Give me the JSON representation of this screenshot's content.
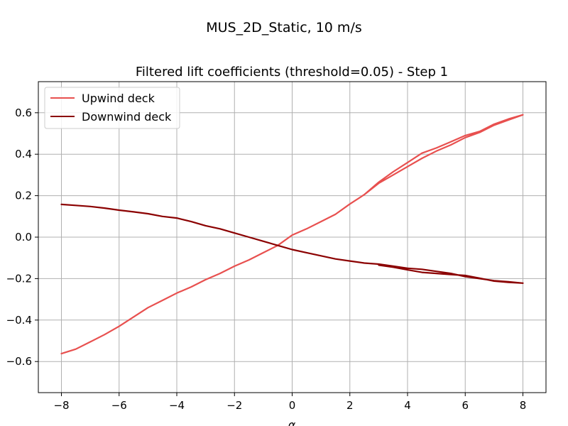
{
  "chart_data": {
    "type": "line",
    "suptitle": "MUS_2D_Static, 10 m/s",
    "title": "Filtered lift coefficients (threshold=0.05) - Step 1",
    "xlabel": "α",
    "ylabel": "",
    "xlim": [
      -8.8,
      8.8
    ],
    "ylim": [
      -0.75,
      0.75
    ],
    "xticks": [
      -8,
      -6,
      -4,
      -2,
      0,
      2,
      4,
      6,
      8
    ],
    "yticks": [
      -0.6,
      -0.4,
      -0.2,
      0.0,
      0.2,
      0.4,
      0.6
    ],
    "xtick_labels": [
      "−8",
      "−6",
      "−4",
      "−2",
      "0",
      "2",
      "4",
      "6",
      "8"
    ],
    "ytick_labels": [
      "−0.6",
      "−0.4",
      "−0.2",
      "0.0",
      "0.2",
      "0.4",
      "0.6"
    ],
    "grid": true,
    "legend_position": "upper-left",
    "series": [
      {
        "name": "Upwind deck",
        "color": "#e8504f",
        "points": [
          [
            -8,
            -0.562
          ],
          [
            -7.5,
            -0.54
          ],
          [
            -7,
            -0.505
          ],
          [
            -6.5,
            -0.47
          ],
          [
            -6,
            -0.43
          ],
          [
            -5.5,
            -0.385
          ],
          [
            -5,
            -0.34
          ],
          [
            -4.5,
            -0.305
          ],
          [
            -4,
            -0.27
          ],
          [
            -3.5,
            -0.24
          ],
          [
            -3,
            -0.205
          ],
          [
            -2.5,
            -0.175
          ],
          [
            -2,
            -0.14
          ],
          [
            -1.5,
            -0.11
          ],
          [
            -1,
            -0.075
          ],
          [
            -0.5,
            -0.04
          ],
          [
            0,
            0.01
          ],
          [
            0.5,
            0.04
          ],
          [
            1,
            0.075
          ],
          [
            1.5,
            0.11
          ],
          [
            2,
            0.16
          ],
          [
            2.5,
            0.205
          ],
          [
            3,
            0.265
          ],
          [
            3.5,
            0.315
          ],
          [
            4,
            0.36
          ],
          [
            4.5,
            0.405
          ],
          [
            5,
            0.43
          ],
          [
            5.5,
            0.46
          ],
          [
            6,
            0.49
          ],
          [
            6.5,
            0.51
          ],
          [
            7,
            0.545
          ],
          [
            7.5,
            0.57
          ],
          [
            8,
            0.59
          ],
          [
            7.5,
            0.565
          ],
          [
            7,
            0.54
          ],
          [
            6.5,
            0.505
          ],
          [
            6,
            0.48
          ],
          [
            5.5,
            0.445
          ],
          [
            5,
            0.415
          ],
          [
            4.5,
            0.38
          ],
          [
            4,
            0.34
          ],
          [
            3.5,
            0.3
          ],
          [
            3,
            0.26
          ],
          [
            2.5,
            0.205
          ],
          [
            2,
            0.16
          ]
        ]
      },
      {
        "name": "Downwind deck",
        "color": "#8b0000",
        "points": [
          [
            -8,
            0.158
          ],
          [
            -7.5,
            0.153
          ],
          [
            -7,
            0.148
          ],
          [
            -6.5,
            0.14
          ],
          [
            -6,
            0.13
          ],
          [
            -5.5,
            0.122
          ],
          [
            -5,
            0.113
          ],
          [
            -4.5,
            0.1
          ],
          [
            -4,
            0.092
          ],
          [
            -3.5,
            0.075
          ],
          [
            -3,
            0.055
          ],
          [
            -2.5,
            0.04
          ],
          [
            -2,
            0.02
          ],
          [
            -1.5,
            0.0
          ],
          [
            -1,
            -0.02
          ],
          [
            -0.5,
            -0.04
          ],
          [
            0,
            -0.06
          ],
          [
            0.5,
            -0.075
          ],
          [
            1,
            -0.09
          ],
          [
            1.5,
            -0.105
          ],
          [
            2,
            -0.115
          ],
          [
            2.5,
            -0.125
          ],
          [
            3,
            -0.13
          ],
          [
            3.5,
            -0.14
          ],
          [
            4,
            -0.15
          ],
          [
            4.5,
            -0.155
          ],
          [
            5,
            -0.165
          ],
          [
            5.5,
            -0.175
          ],
          [
            6,
            -0.19
          ],
          [
            6.5,
            -0.2
          ],
          [
            7,
            -0.21
          ],
          [
            7.5,
            -0.215
          ],
          [
            8,
            -0.222
          ],
          [
            7.5,
            -0.218
          ],
          [
            7,
            -0.212
          ],
          [
            6.5,
            -0.198
          ],
          [
            6,
            -0.185
          ],
          [
            5.5,
            -0.18
          ],
          [
            5,
            -0.175
          ],
          [
            4.5,
            -0.17
          ],
          [
            4,
            -0.158
          ],
          [
            3.5,
            -0.145
          ],
          [
            3,
            -0.135
          ]
        ]
      }
    ]
  }
}
